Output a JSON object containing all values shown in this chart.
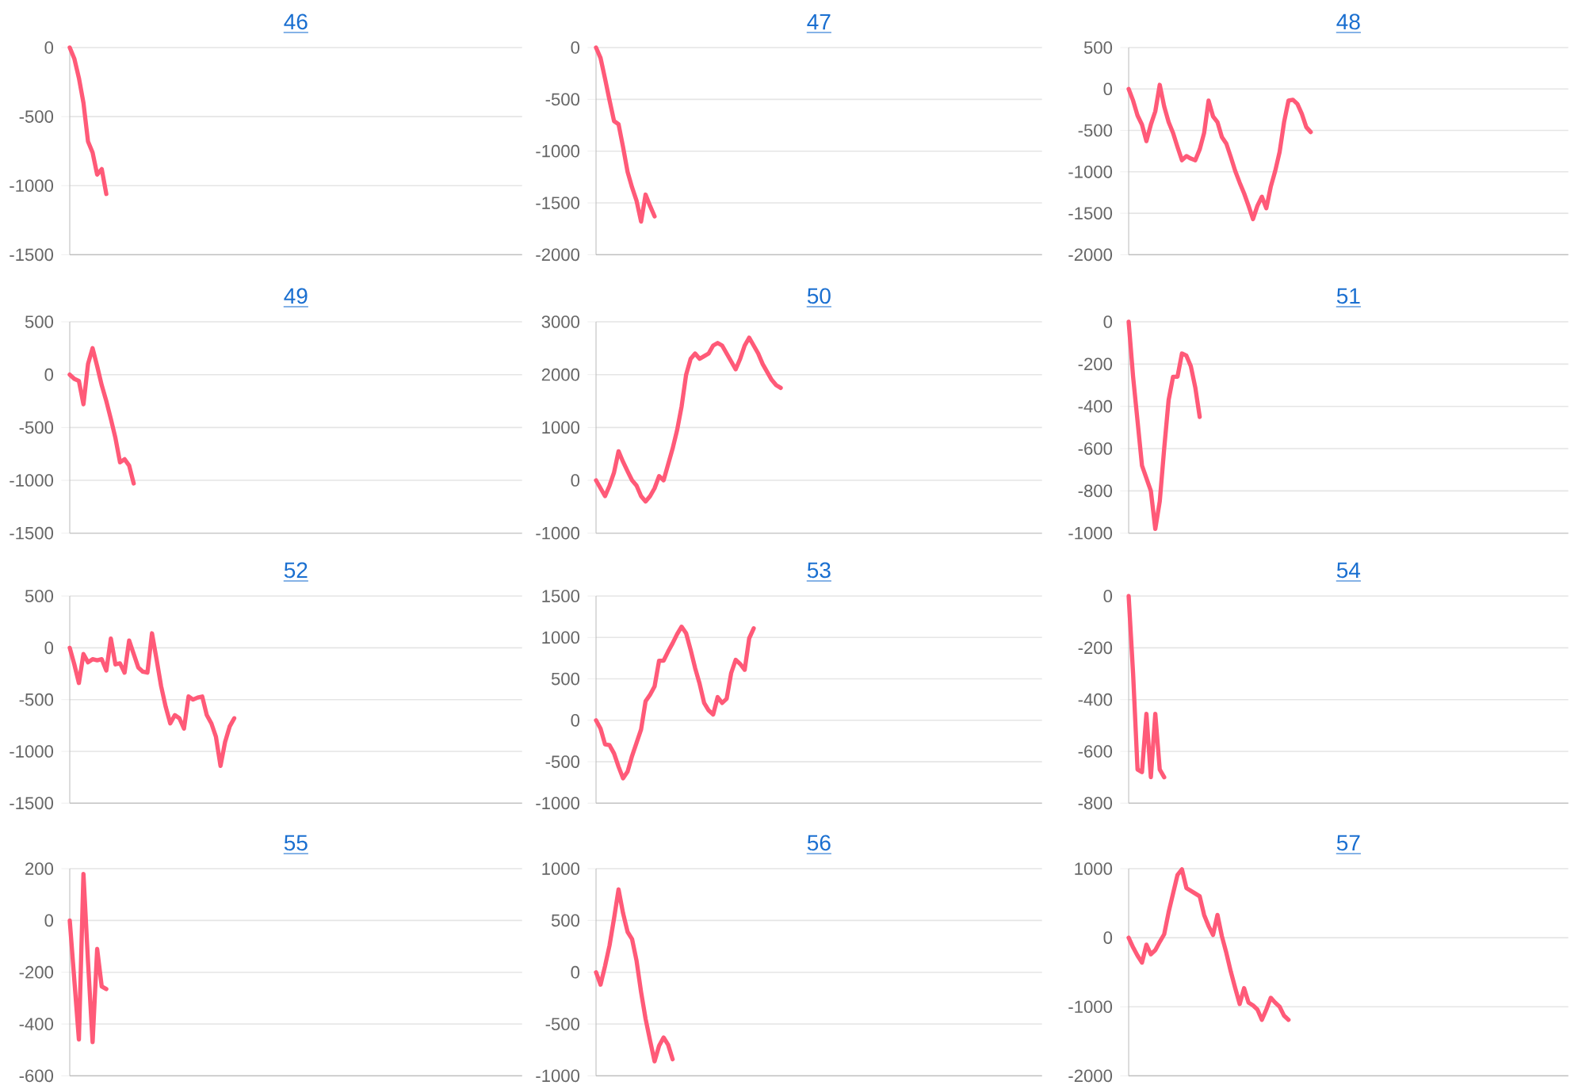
{
  "chart_data": [
    {
      "type": "line",
      "title": "46",
      "color": "#ff5a78",
      "grid": "y",
      "marker": "none",
      "tick_labels": "y",
      "ylim": [
        -1500,
        0
      ],
      "yticks": [
        -1500,
        -1000,
        -500,
        0
      ],
      "categories": [
        null,
        null,
        null,
        null,
        null,
        null,
        null,
        null,
        null,
        null,
        null,
        null,
        null,
        null,
        null,
        null,
        null,
        null,
        null,
        null,
        null,
        null,
        null,
        null,
        null,
        null,
        null,
        null,
        null,
        null,
        null,
        null,
        null,
        null,
        null,
        null,
        null,
        null,
        null,
        null,
        null,
        null,
        null,
        null,
        null,
        null,
        null,
        null,
        null,
        null,
        null,
        null,
        null,
        null,
        null,
        null,
        null,
        null,
        null,
        null,
        null,
        null,
        null,
        null,
        null,
        null,
        null,
        null,
        null,
        null,
        null,
        null,
        null,
        null,
        null,
        null,
        null,
        null,
        null,
        null,
        null,
        null,
        null,
        null,
        null,
        null,
        null,
        null,
        null,
        null,
        null,
        null,
        null,
        null,
        null,
        null,
        null,
        null,
        null,
        null
      ],
      "values": [
        0,
        -80,
        -220,
        -400,
        -680,
        -760,
        -920,
        -880,
        -1060,
        null,
        null,
        null,
        null,
        null,
        null,
        null,
        null,
        null,
        null,
        null,
        null,
        null,
        null,
        null,
        null,
        null,
        null,
        null,
        null,
        null,
        null,
        null,
        null,
        null,
        null,
        null,
        null,
        null,
        null,
        null,
        null,
        null,
        null,
        null,
        null,
        null,
        null,
        null,
        null,
        null,
        null,
        null,
        null,
        null,
        null,
        null,
        null,
        null,
        null,
        null,
        null,
        null,
        null,
        null,
        null,
        null,
        null,
        null,
        null,
        null,
        null,
        null,
        null,
        null,
        null,
        null,
        null,
        null,
        null,
        null,
        null,
        null,
        null,
        null,
        null,
        null,
        null,
        null,
        null,
        null,
        null,
        null,
        null,
        null,
        null,
        null,
        null,
        null,
        null,
        null
      ]
    },
    {
      "type": "line",
      "title": "47",
      "color": "#ff5a78",
      "grid": "y",
      "marker": "none",
      "tick_labels": "y",
      "ylim": [
        -2000,
        0
      ],
      "yticks": [
        -2000,
        -1500,
        -1000,
        -500,
        0
      ],
      "categories": [
        null,
        null,
        null,
        null,
        null,
        null,
        null,
        null,
        null,
        null,
        null,
        null,
        null,
        null,
        null,
        null,
        null,
        null,
        null,
        null,
        null,
        null,
        null,
        null,
        null,
        null,
        null,
        null,
        null,
        null,
        null,
        null,
        null,
        null,
        null,
        null,
        null,
        null,
        null,
        null,
        null,
        null,
        null,
        null,
        null,
        null,
        null,
        null,
        null,
        null,
        null,
        null,
        null,
        null,
        null,
        null,
        null,
        null,
        null,
        null,
        null,
        null,
        null,
        null,
        null,
        null,
        null,
        null,
        null,
        null,
        null,
        null,
        null,
        null,
        null,
        null,
        null,
        null,
        null,
        null,
        null,
        null,
        null,
        null,
        null,
        null,
        null,
        null,
        null,
        null,
        null,
        null,
        null,
        null,
        null,
        null,
        null,
        null,
        null,
        null
      ],
      "values": [
        0,
        -100,
        -300,
        -510,
        -710,
        -740,
        -960,
        -1200,
        -1350,
        -1480,
        -1680,
        -1420,
        -1530,
        -1630,
        null,
        null,
        null,
        null,
        null,
        null,
        null,
        null,
        null,
        null,
        null,
        null,
        null,
        null,
        null,
        null,
        null,
        null,
        null,
        null,
        null,
        null,
        null,
        null,
        null,
        null,
        null,
        null,
        null,
        null,
        null,
        null,
        null,
        null,
        null,
        null,
        null,
        null,
        null,
        null,
        null,
        null,
        null,
        null,
        null,
        null,
        null,
        null,
        null,
        null,
        null,
        null,
        null,
        null,
        null,
        null,
        null,
        null,
        null,
        null,
        null,
        null,
        null,
        null,
        null,
        null,
        null,
        null,
        null,
        null,
        null,
        null,
        null,
        null,
        null,
        null,
        null,
        null,
        null,
        null,
        null,
        null,
        null,
        null,
        null,
        null
      ]
    },
    {
      "type": "line",
      "title": "48",
      "color": "#ff5a78",
      "grid": "y",
      "marker": "none",
      "tick_labels": "y",
      "ylim": [
        -2000,
        500
      ],
      "yticks": [
        -2000,
        -1500,
        -1000,
        -500,
        0,
        500
      ],
      "categories": [
        null,
        null,
        null,
        null,
        null,
        null,
        null,
        null,
        null,
        null,
        null,
        null,
        null,
        null,
        null,
        null,
        null,
        null,
        null,
        null,
        null,
        null,
        null,
        null,
        null,
        null,
        null,
        null,
        null,
        null,
        null,
        null,
        null,
        null,
        null,
        null,
        null,
        null,
        null,
        null,
        null,
        null,
        null,
        null,
        null,
        null,
        null,
        null,
        null,
        null,
        null,
        null,
        null,
        null,
        null,
        null,
        null,
        null,
        null,
        null,
        null,
        null,
        null,
        null,
        null,
        null,
        null,
        null,
        null,
        null,
        null,
        null,
        null,
        null,
        null,
        null,
        null,
        null,
        null,
        null,
        null,
        null,
        null,
        null,
        null,
        null,
        null,
        null,
        null,
        null,
        null,
        null,
        null,
        null,
        null,
        null,
        null,
        null,
        null,
        null
      ],
      "values": [
        0,
        -140,
        -320,
        -430,
        -630,
        -430,
        -270,
        50,
        -210,
        -400,
        -530,
        -700,
        -860,
        -810,
        -840,
        -860,
        -730,
        -530,
        -140,
        -330,
        -400,
        -580,
        -660,
        -820,
        -990,
        -1130,
        -1260,
        -1410,
        -1570,
        -1410,
        -1300,
        -1440,
        -1180,
        -990,
        -760,
        -400,
        -140,
        -130,
        -180,
        -300,
        -460,
        -520,
        null,
        null,
        null,
        null,
        null,
        null,
        null,
        null,
        null,
        null,
        null,
        null,
        null,
        null,
        null,
        null,
        null,
        null,
        null,
        null,
        null,
        null,
        null,
        null,
        null,
        null,
        null,
        null,
        null,
        null,
        null,
        null,
        null,
        null,
        null,
        null,
        null,
        null,
        null,
        null,
        null,
        null,
        null,
        null,
        null,
        null,
        null,
        null,
        null,
        null,
        null,
        null,
        null,
        null,
        null,
        null,
        null,
        null
      ]
    },
    {
      "type": "line",
      "title": "49",
      "color": "#ff5a78",
      "grid": "y",
      "marker": "none",
      "tick_labels": "y",
      "ylim": [
        -1500,
        500
      ],
      "yticks": [
        -1500,
        -1000,
        -500,
        0,
        500
      ],
      "categories": [
        null,
        null,
        null,
        null,
        null,
        null,
        null,
        null,
        null,
        null,
        null,
        null,
        null,
        null,
        null,
        null,
        null,
        null,
        null,
        null,
        null,
        null,
        null,
        null,
        null,
        null,
        null,
        null,
        null,
        null,
        null,
        null,
        null,
        null,
        null,
        null,
        null,
        null,
        null,
        null,
        null,
        null,
        null,
        null,
        null,
        null,
        null,
        null,
        null,
        null,
        null,
        null,
        null,
        null,
        null,
        null,
        null,
        null,
        null,
        null,
        null,
        null,
        null,
        null,
        null,
        null,
        null,
        null,
        null,
        null,
        null,
        null,
        null,
        null,
        null,
        null,
        null,
        null,
        null,
        null,
        null,
        null,
        null,
        null,
        null,
        null,
        null,
        null,
        null,
        null,
        null,
        null,
        null,
        null,
        null,
        null,
        null,
        null,
        null,
        null
      ],
      "values": [
        0,
        -40,
        -60,
        -280,
        100,
        250,
        80,
        -100,
        -250,
        -420,
        -600,
        -830,
        -800,
        -860,
        -1030,
        null,
        null,
        null,
        null,
        null,
        null,
        null,
        null,
        null,
        null,
        null,
        null,
        null,
        null,
        null,
        null,
        null,
        null,
        null,
        null,
        null,
        null,
        null,
        null,
        null,
        null,
        null,
        null,
        null,
        null,
        null,
        null,
        null,
        null,
        null,
        null,
        null,
        null,
        null,
        null,
        null,
        null,
        null,
        null,
        null,
        null,
        null,
        null,
        null,
        null,
        null,
        null,
        null,
        null,
        null,
        null,
        null,
        null,
        null,
        null,
        null,
        null,
        null,
        null,
        null,
        null,
        null,
        null,
        null,
        null,
        null,
        null,
        null,
        null,
        null,
        null,
        null,
        null,
        null,
        null,
        null,
        null,
        null,
        null,
        null
      ]
    },
    {
      "type": "line",
      "title": "50",
      "color": "#ff5a78",
      "grid": "y",
      "marker": "none",
      "tick_labels": "y",
      "ylim": [
        -1000,
        3000
      ],
      "yticks": [
        -1000,
        0,
        1000,
        2000,
        3000
      ],
      "categories": [
        null,
        null,
        null,
        null,
        null,
        null,
        null,
        null,
        null,
        null,
        null,
        null,
        null,
        null,
        null,
        null,
        null,
        null,
        null,
        null,
        null,
        null,
        null,
        null,
        null,
        null,
        null,
        null,
        null,
        null,
        null,
        null,
        null,
        null,
        null,
        null,
        null,
        null,
        null,
        null,
        null,
        null,
        null,
        null,
        null,
        null,
        null,
        null,
        null,
        null,
        null,
        null,
        null,
        null,
        null,
        null,
        null,
        null,
        null,
        null,
        null,
        null,
        null,
        null,
        null,
        null,
        null,
        null,
        null,
        null,
        null,
        null,
        null,
        null,
        null,
        null,
        null,
        null,
        null,
        null,
        null,
        null,
        null,
        null,
        null,
        null,
        null,
        null,
        null,
        null,
        null,
        null,
        null,
        null,
        null,
        null,
        null,
        null,
        null,
        null
      ],
      "values": [
        0,
        -150,
        -300,
        -100,
        150,
        550,
        350,
        170,
        0,
        -100,
        -300,
        -400,
        -300,
        -150,
        80,
        0,
        300,
        600,
        950,
        1400,
        2000,
        2300,
        2400,
        2300,
        2350,
        2400,
        2550,
        2600,
        2550,
        2400,
        2250,
        2100,
        2300,
        2550,
        2700,
        2550,
        2400,
        2200,
        2050,
        1900,
        1800,
        1750,
        null,
        null,
        null,
        null,
        null,
        null,
        null,
        null,
        null,
        null,
        null,
        null,
        null,
        null,
        null,
        null,
        null,
        null,
        null,
        null,
        null,
        null,
        null,
        null,
        null,
        null,
        null,
        null,
        null,
        null,
        null,
        null,
        null,
        null,
        null,
        null,
        null,
        null,
        null,
        null,
        null,
        null,
        null,
        null,
        null,
        null,
        null,
        null,
        null,
        null,
        null,
        null,
        null,
        null,
        null,
        null,
        null,
        null
      ]
    },
    {
      "type": "line",
      "title": "51",
      "color": "#ff5a78",
      "grid": "y",
      "marker": "none",
      "tick_labels": "y",
      "ylim": [
        -1000,
        0
      ],
      "yticks": [
        -1000,
        -800,
        -600,
        -400,
        -200,
        0
      ],
      "categories": [
        null,
        null,
        null,
        null,
        null,
        null,
        null,
        null,
        null,
        null,
        null,
        null,
        null,
        null,
        null,
        null,
        null,
        null,
        null,
        null,
        null,
        null,
        null,
        null,
        null,
        null,
        null,
        null,
        null,
        null,
        null,
        null,
        null,
        null,
        null,
        null,
        null,
        null,
        null,
        null,
        null,
        null,
        null,
        null,
        null,
        null,
        null,
        null,
        null,
        null,
        null,
        null,
        null,
        null,
        null,
        null,
        null,
        null,
        null,
        null,
        null,
        null,
        null,
        null,
        null,
        null,
        null,
        null,
        null,
        null,
        null,
        null,
        null,
        null,
        null,
        null,
        null,
        null,
        null,
        null,
        null,
        null,
        null,
        null,
        null,
        null,
        null,
        null,
        null,
        null,
        null,
        null,
        null,
        null,
        null,
        null,
        null,
        null,
        null,
        null
      ],
      "values": [
        0,
        -260,
        -470,
        -680,
        -740,
        -800,
        -980,
        -850,
        -600,
        -370,
        -260,
        -260,
        -150,
        -160,
        -210,
        -310,
        -450,
        null,
        null,
        null,
        null,
        null,
        null,
        null,
        null,
        null,
        null,
        null,
        null,
        null,
        null,
        null,
        null,
        null,
        null,
        null,
        null,
        null,
        null,
        null,
        null,
        null,
        null,
        null,
        null,
        null,
        null,
        null,
        null,
        null,
        null,
        null,
        null,
        null,
        null,
        null,
        null,
        null,
        null,
        null,
        null,
        null,
        null,
        null,
        null,
        null,
        null,
        null,
        null,
        null,
        null,
        null,
        null,
        null,
        null,
        null,
        null,
        null,
        null,
        null,
        null,
        null,
        null,
        null,
        null,
        null,
        null,
        null,
        null,
        null,
        null,
        null,
        null,
        null,
        null,
        null,
        null,
        null,
        null,
        null
      ]
    },
    {
      "type": "line",
      "title": "52",
      "color": "#ff5a78",
      "grid": "y",
      "marker": "none",
      "tick_labels": "y",
      "ylim": [
        -1500,
        500
      ],
      "yticks": [
        -1500,
        -1000,
        -500,
        0,
        500
      ],
      "categories": [
        null,
        null,
        null,
        null,
        null,
        null,
        null,
        null,
        null,
        null,
        null,
        null,
        null,
        null,
        null,
        null,
        null,
        null,
        null,
        null,
        null,
        null,
        null,
        null,
        null,
        null,
        null,
        null,
        null,
        null,
        null,
        null,
        null,
        null,
        null,
        null,
        null,
        null,
        null,
        null,
        null,
        null,
        null,
        null,
        null,
        null,
        null,
        null,
        null,
        null,
        null,
        null,
        null,
        null,
        null,
        null,
        null,
        null,
        null,
        null,
        null,
        null,
        null,
        null,
        null,
        null,
        null,
        null,
        null,
        null,
        null,
        null,
        null,
        null,
        null,
        null,
        null,
        null,
        null,
        null,
        null,
        null,
        null,
        null,
        null,
        null,
        null,
        null,
        null,
        null,
        null,
        null,
        null,
        null,
        null,
        null,
        null,
        null,
        null,
        null
      ],
      "values": [
        0,
        -160,
        -340,
        -60,
        -140,
        -110,
        -120,
        -110,
        -220,
        90,
        -160,
        -150,
        -240,
        70,
        -60,
        -190,
        -230,
        -240,
        140,
        -110,
        -370,
        -570,
        -730,
        -650,
        -680,
        -780,
        -470,
        -500,
        -480,
        -470,
        -650,
        -730,
        -860,
        -1140,
        -910,
        -760,
        -680,
        null,
        null,
        null,
        null,
        null,
        null,
        null,
        null,
        null,
        null,
        null,
        null,
        null,
        null,
        null,
        null,
        null,
        null,
        null,
        null,
        null,
        null,
        null,
        null,
        null,
        null,
        null,
        null,
        null,
        null,
        null,
        null,
        null,
        null,
        null,
        null,
        null,
        null,
        null,
        null,
        null,
        null,
        null,
        null,
        null,
        null,
        null,
        null,
        null,
        null,
        null,
        null,
        null,
        null,
        null,
        null,
        null,
        null,
        null,
        null,
        null,
        null,
        null
      ]
    },
    {
      "type": "line",
      "title": "53",
      "color": "#ff5a78",
      "grid": "y",
      "marker": "none",
      "tick_labels": "y",
      "ylim": [
        -1000,
        1500
      ],
      "yticks": [
        -1000,
        -500,
        0,
        500,
        1000,
        1500
      ],
      "categories": [
        null,
        null,
        null,
        null,
        null,
        null,
        null,
        null,
        null,
        null,
        null,
        null,
        null,
        null,
        null,
        null,
        null,
        null,
        null,
        null,
        null,
        null,
        null,
        null,
        null,
        null,
        null,
        null,
        null,
        null,
        null,
        null,
        null,
        null,
        null,
        null,
        null,
        null,
        null,
        null,
        null,
        null,
        null,
        null,
        null,
        null,
        null,
        null,
        null,
        null,
        null,
        null,
        null,
        null,
        null,
        null,
        null,
        null,
        null,
        null,
        null,
        null,
        null,
        null,
        null,
        null,
        null,
        null,
        null,
        null,
        null,
        null,
        null,
        null,
        null,
        null,
        null,
        null,
        null,
        null,
        null,
        null,
        null,
        null,
        null,
        null,
        null,
        null,
        null,
        null,
        null,
        null,
        null,
        null,
        null,
        null,
        null,
        null,
        null,
        null
      ],
      "values": [
        0,
        -100,
        -290,
        -300,
        -400,
        -560,
        -700,
        -620,
        -430,
        -270,
        -110,
        230,
        310,
        410,
        720,
        720,
        830,
        930,
        1040,
        1130,
        1050,
        850,
        630,
        440,
        210,
        120,
        70,
        280,
        210,
        260,
        570,
        730,
        680,
        610,
        990,
        1110,
        null,
        null,
        null,
        null,
        null,
        null,
        null,
        null,
        null,
        null,
        null,
        null,
        null,
        null,
        null,
        null,
        null,
        null,
        null,
        null,
        null,
        null,
        null,
        null,
        null,
        null,
        null,
        null,
        null,
        null,
        null,
        null,
        null,
        null,
        null,
        null,
        null,
        null,
        null,
        null,
        null,
        null,
        null,
        null,
        null,
        null,
        null,
        null,
        null,
        null,
        null,
        null,
        null,
        null,
        null,
        null,
        null,
        null,
        null,
        null,
        null,
        null,
        null,
        null
      ]
    },
    {
      "type": "line",
      "title": "54",
      "color": "#ff5a78",
      "grid": "y",
      "marker": "none",
      "tick_labels": "y",
      "ylim": [
        -800,
        0
      ],
      "yticks": [
        -800,
        -600,
        -400,
        -200,
        0
      ],
      "categories": [
        null,
        null,
        null,
        null,
        null,
        null,
        null,
        null,
        null,
        null,
        null,
        null,
        null,
        null,
        null,
        null,
        null,
        null,
        null,
        null,
        null,
        null,
        null,
        null,
        null,
        null,
        null,
        null,
        null,
        null,
        null,
        null,
        null,
        null,
        null,
        null,
        null,
        null,
        null,
        null,
        null,
        null,
        null,
        null,
        null,
        null,
        null,
        null,
        null,
        null,
        null,
        null,
        null,
        null,
        null,
        null,
        null,
        null,
        null,
        null,
        null,
        null,
        null,
        null,
        null,
        null,
        null,
        null,
        null,
        null,
        null,
        null,
        null,
        null,
        null,
        null,
        null,
        null,
        null,
        null,
        null,
        null,
        null,
        null,
        null,
        null,
        null,
        null,
        null,
        null,
        null,
        null,
        null,
        null,
        null,
        null,
        null,
        null,
        null,
        null
      ],
      "values": [
        0,
        -300,
        -670,
        -680,
        -455,
        -700,
        -455,
        -670,
        -700,
        null,
        null,
        null,
        null,
        null,
        null,
        null,
        null,
        null,
        null,
        null,
        null,
        null,
        null,
        null,
        null,
        null,
        null,
        null,
        null,
        null,
        null,
        null,
        null,
        null,
        null,
        null,
        null,
        null,
        null,
        null,
        null,
        null,
        null,
        null,
        null,
        null,
        null,
        null,
        null,
        null,
        null,
        null,
        null,
        null,
        null,
        null,
        null,
        null,
        null,
        null,
        null,
        null,
        null,
        null,
        null,
        null,
        null,
        null,
        null,
        null,
        null,
        null,
        null,
        null,
        null,
        null,
        null,
        null,
        null,
        null,
        null,
        null,
        null,
        null,
        null,
        null,
        null,
        null,
        null,
        null,
        null,
        null,
        null,
        null,
        null,
        null,
        null,
        null,
        null,
        null
      ]
    },
    {
      "type": "line",
      "title": "55",
      "color": "#ff5a78",
      "grid": "y",
      "marker": "none",
      "tick_labels": "y",
      "ylim": [
        -600,
        200
      ],
      "yticks": [
        -600,
        -400,
        -200,
        0,
        200
      ],
      "categories": [
        null,
        null,
        null,
        null,
        null,
        null,
        null,
        null,
        null,
        null,
        null,
        null,
        null,
        null,
        null,
        null,
        null,
        null,
        null,
        null,
        null,
        null,
        null,
        null,
        null,
        null,
        null,
        null,
        null,
        null,
        null,
        null,
        null,
        null,
        null,
        null,
        null,
        null,
        null,
        null,
        null,
        null,
        null,
        null,
        null,
        null,
        null,
        null,
        null,
        null,
        null,
        null,
        null,
        null,
        null,
        null,
        null,
        null,
        null,
        null,
        null,
        null,
        null,
        null,
        null,
        null,
        null,
        null,
        null,
        null,
        null,
        null,
        null,
        null,
        null,
        null,
        null,
        null,
        null,
        null,
        null,
        null,
        null,
        null,
        null,
        null,
        null,
        null,
        null,
        null,
        null,
        null,
        null,
        null,
        null,
        null,
        null,
        null,
        null,
        null
      ],
      "values": [
        0,
        -230,
        -460,
        180,
        -160,
        -470,
        -110,
        -255,
        -265,
        null,
        null,
        null,
        null,
        null,
        null,
        null,
        null,
        null,
        null,
        null,
        null,
        null,
        null,
        null,
        null,
        null,
        null,
        null,
        null,
        null,
        null,
        null,
        null,
        null,
        null,
        null,
        null,
        null,
        null,
        null,
        null,
        null,
        null,
        null,
        null,
        null,
        null,
        null,
        null,
        null,
        null,
        null,
        null,
        null,
        null,
        null,
        null,
        null,
        null,
        null,
        null,
        null,
        null,
        null,
        null,
        null,
        null,
        null,
        null,
        null,
        null,
        null,
        null,
        null,
        null,
        null,
        null,
        null,
        null,
        null,
        null,
        null,
        null,
        null,
        null,
        null,
        null,
        null,
        null,
        null,
        null,
        null,
        null,
        null,
        null,
        null,
        null,
        null,
        null,
        null
      ]
    },
    {
      "type": "line",
      "title": "56",
      "color": "#ff5a78",
      "grid": "y",
      "marker": "none",
      "tick_labels": "y",
      "ylim": [
        -1000,
        1000
      ],
      "yticks": [
        -1000,
        -500,
        0,
        500,
        1000
      ],
      "categories": [
        null,
        null,
        null,
        null,
        null,
        null,
        null,
        null,
        null,
        null,
        null,
        null,
        null,
        null,
        null,
        null,
        null,
        null,
        null,
        null,
        null,
        null,
        null,
        null,
        null,
        null,
        null,
        null,
        null,
        null,
        null,
        null,
        null,
        null,
        null,
        null,
        null,
        null,
        null,
        null,
        null,
        null,
        null,
        null,
        null,
        null,
        null,
        null,
        null,
        null,
        null,
        null,
        null,
        null,
        null,
        null,
        null,
        null,
        null,
        null,
        null,
        null,
        null,
        null,
        null,
        null,
        null,
        null,
        null,
        null,
        null,
        null,
        null,
        null,
        null,
        null,
        null,
        null,
        null,
        null,
        null,
        null,
        null,
        null,
        null,
        null,
        null,
        null,
        null,
        null,
        null,
        null,
        null,
        null,
        null,
        null,
        null,
        null,
        null,
        null
      ],
      "values": [
        0,
        -120,
        60,
        260,
        520,
        800,
        570,
        390,
        320,
        110,
        -190,
        -450,
        -660,
        -860,
        -710,
        -630,
        -700,
        -840,
        null,
        null,
        null,
        null,
        null,
        null,
        null,
        null,
        null,
        null,
        null,
        null,
        null,
        null,
        null,
        null,
        null,
        null,
        null,
        null,
        null,
        null,
        null,
        null,
        null,
        null,
        null,
        null,
        null,
        null,
        null,
        null,
        null,
        null,
        null,
        null,
        null,
        null,
        null,
        null,
        null,
        null,
        null,
        null,
        null,
        null,
        null,
        null,
        null,
        null,
        null,
        null,
        null,
        null,
        null,
        null,
        null,
        null,
        null,
        null,
        null,
        null,
        null,
        null,
        null,
        null,
        null,
        null,
        null,
        null,
        null,
        null,
        null,
        null,
        null,
        null,
        null,
        null,
        null,
        null,
        null,
        null
      ]
    },
    {
      "type": "line",
      "title": "57",
      "color": "#ff5a78",
      "grid": "y",
      "marker": "none",
      "tick_labels": "y",
      "ylim": [
        -2000,
        1000
      ],
      "yticks": [
        -2000,
        -1000,
        0,
        1000
      ],
      "categories": [
        null,
        null,
        null,
        null,
        null,
        null,
        null,
        null,
        null,
        null,
        null,
        null,
        null,
        null,
        null,
        null,
        null,
        null,
        null,
        null,
        null,
        null,
        null,
        null,
        null,
        null,
        null,
        null,
        null,
        null,
        null,
        null,
        null,
        null,
        null,
        null,
        null,
        null,
        null,
        null,
        null,
        null,
        null,
        null,
        null,
        null,
        null,
        null,
        null,
        null,
        null,
        null,
        null,
        null,
        null,
        null,
        null,
        null,
        null,
        null,
        null,
        null,
        null,
        null,
        null,
        null,
        null,
        null,
        null,
        null,
        null,
        null,
        null,
        null,
        null,
        null,
        null,
        null,
        null,
        null,
        null,
        null,
        null,
        null,
        null,
        null,
        null,
        null,
        null,
        null,
        null,
        null,
        null,
        null,
        null,
        null,
        null,
        null,
        null,
        null
      ],
      "values": [
        0,
        -140,
        -260,
        -360,
        -100,
        -240,
        -180,
        -60,
        50,
        370,
        640,
        910,
        990,
        720,
        680,
        640,
        600,
        330,
        170,
        40,
        330,
        20,
        -220,
        -490,
        -730,
        -960,
        -730,
        -940,
        -980,
        -1040,
        -1190,
        -1040,
        -870,
        -940,
        -1000,
        -1130,
        -1190,
        null,
        null,
        null,
        null,
        null,
        null,
        null,
        null,
        null,
        null,
        null,
        null,
        null,
        null,
        null,
        null,
        null,
        null,
        null,
        null,
        null,
        null,
        null,
        null,
        null,
        null,
        null,
        null,
        null,
        null,
        null,
        null,
        null,
        null,
        null,
        null,
        null,
        null,
        null,
        null,
        null,
        null,
        null,
        null,
        null,
        null,
        null,
        null,
        null,
        null,
        null,
        null,
        null,
        null,
        null,
        null,
        null,
        null,
        null,
        null,
        null,
        null,
        null
      ]
    }
  ]
}
